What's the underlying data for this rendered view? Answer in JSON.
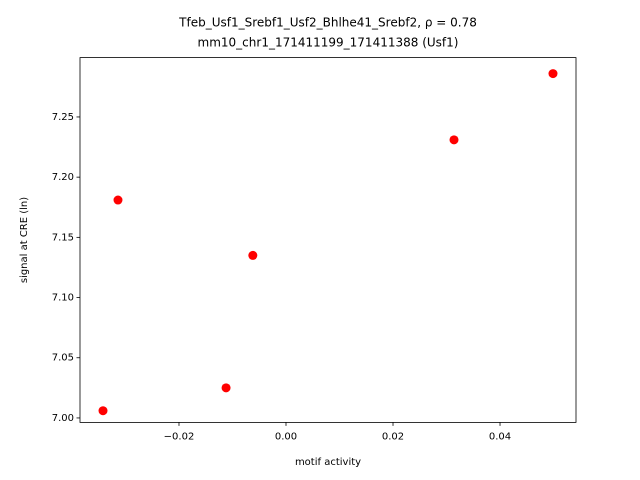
{
  "chart_data": {
    "type": "scatter",
    "title": [
      "Tfeb_Usf1_Srebf1_Usf2_Bhlhe41_Srebf2, ρ = 0.78",
      "mm10_chr1_171411199_171411388 (Usf1)"
    ],
    "x_label": "motif activity",
    "y_label": "signal at CRE (ln)",
    "x": [
      -0.0342,
      -0.0314,
      -0.0112,
      -0.0062,
      0.0314,
      0.0499
    ],
    "y": [
      7.006,
      7.181,
      7.025,
      7.135,
      7.231,
      7.286
    ],
    "color": "#ff0000",
    "xlim": [
      -0.0385,
      0.0542
    ],
    "ylim": [
      6.9963,
      7.2993
    ],
    "xticks": [
      {
        "value": -0.02,
        "label": "−0.02"
      },
      {
        "value": 0,
        "label": "0.00"
      },
      0.02,
      0.04
    ],
    "yticks": [
      {
        "value": 7.0,
        "label": "7.00"
      },
      7.05,
      {
        "value": 7.1,
        "label": "7.10"
      },
      7.15,
      {
        "value": 7.2,
        "label": "7.20"
      },
      7.25
    ]
  }
}
